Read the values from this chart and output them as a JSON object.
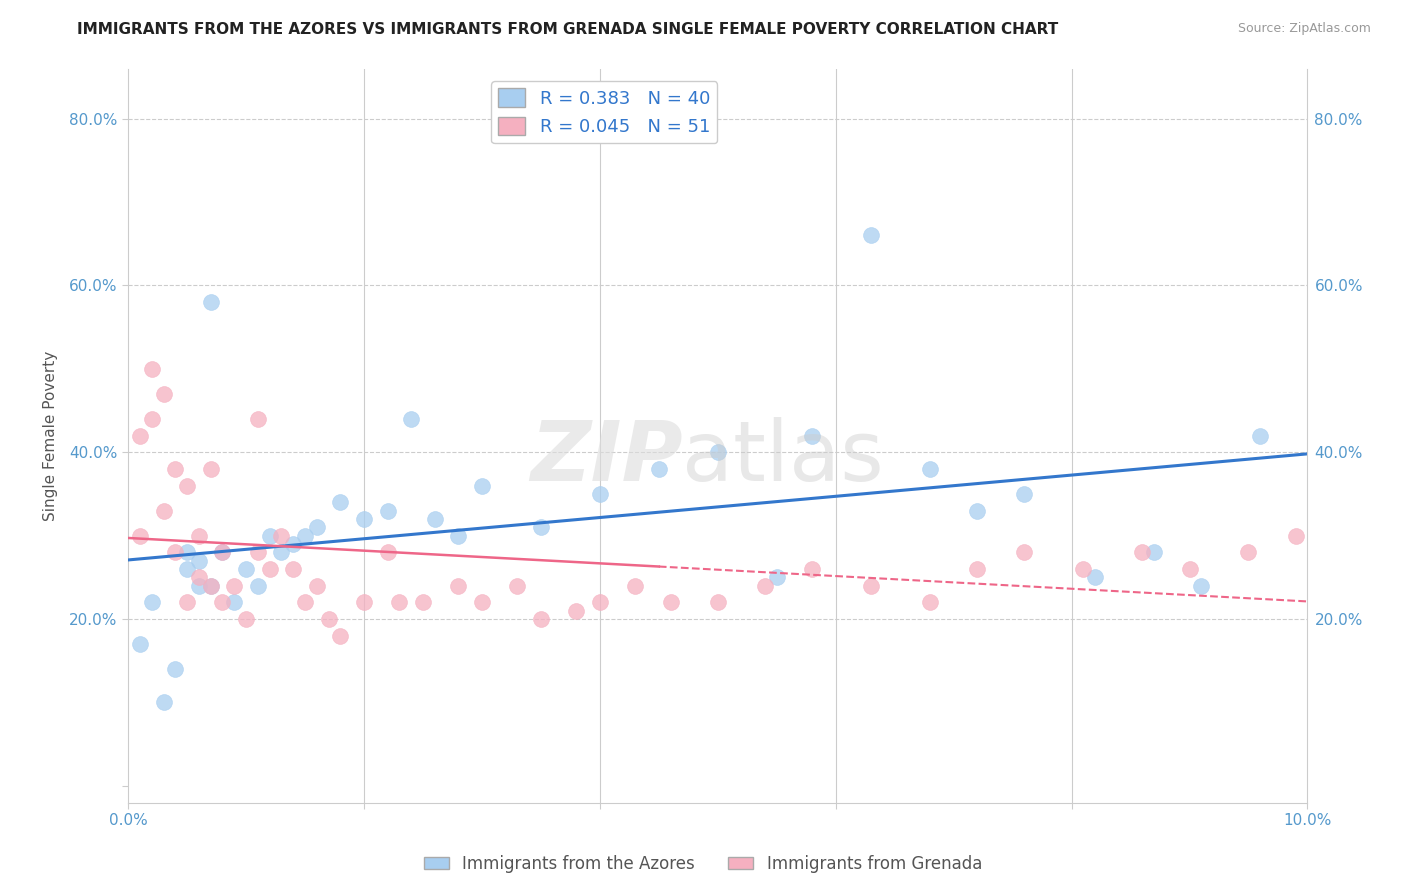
{
  "title": "IMMIGRANTS FROM THE AZORES VS IMMIGRANTS FROM GRENADA SINGLE FEMALE POVERTY CORRELATION CHART",
  "source": "Source: ZipAtlas.com",
  "ylabel": "Single Female Poverty",
  "xlim": [
    0.0,
    0.1
  ],
  "ylim": [
    -0.02,
    0.86
  ],
  "R_azores": 0.383,
  "N_azores": 40,
  "R_grenada": 0.045,
  "N_grenada": 51,
  "color_azores": "#a8cef0",
  "color_grenada": "#f5b0c0",
  "line_color_azores": "#3377cc",
  "line_color_grenada": "#ee6688",
  "legend_azores": "Immigrants from the Azores",
  "legend_grenada": "Immigrants from Grenada",
  "azores_x": [
    0.001,
    0.002,
    0.003,
    0.004,
    0.005,
    0.005,
    0.006,
    0.006,
    0.007,
    0.007,
    0.008,
    0.009,
    0.01,
    0.011,
    0.012,
    0.013,
    0.014,
    0.015,
    0.016,
    0.018,
    0.02,
    0.022,
    0.024,
    0.026,
    0.028,
    0.03,
    0.035,
    0.04,
    0.045,
    0.05,
    0.055,
    0.058,
    0.063,
    0.068,
    0.072,
    0.076,
    0.082,
    0.087,
    0.091,
    0.096
  ],
  "azores_y": [
    0.17,
    0.22,
    0.1,
    0.14,
    0.26,
    0.28,
    0.24,
    0.27,
    0.24,
    0.58,
    0.28,
    0.22,
    0.26,
    0.24,
    0.3,
    0.28,
    0.29,
    0.3,
    0.31,
    0.34,
    0.32,
    0.33,
    0.44,
    0.32,
    0.3,
    0.36,
    0.31,
    0.35,
    0.38,
    0.4,
    0.25,
    0.42,
    0.66,
    0.38,
    0.33,
    0.35,
    0.25,
    0.28,
    0.24,
    0.42
  ],
  "grenada_x": [
    0.001,
    0.001,
    0.002,
    0.002,
    0.003,
    0.003,
    0.004,
    0.004,
    0.005,
    0.005,
    0.006,
    0.006,
    0.007,
    0.007,
    0.008,
    0.008,
    0.009,
    0.01,
    0.011,
    0.011,
    0.012,
    0.013,
    0.014,
    0.015,
    0.016,
    0.017,
    0.018,
    0.02,
    0.022,
    0.023,
    0.025,
    0.028,
    0.03,
    0.033,
    0.035,
    0.038,
    0.04,
    0.043,
    0.046,
    0.05,
    0.054,
    0.058,
    0.063,
    0.068,
    0.072,
    0.076,
    0.081,
    0.086,
    0.09,
    0.095,
    0.099
  ],
  "grenada_y": [
    0.3,
    0.42,
    0.44,
    0.5,
    0.47,
    0.33,
    0.38,
    0.28,
    0.36,
    0.22,
    0.25,
    0.3,
    0.24,
    0.38,
    0.22,
    0.28,
    0.24,
    0.2,
    0.44,
    0.28,
    0.26,
    0.3,
    0.26,
    0.22,
    0.24,
    0.2,
    0.18,
    0.22,
    0.28,
    0.22,
    0.22,
    0.24,
    0.22,
    0.24,
    0.2,
    0.21,
    0.22,
    0.24,
    0.22,
    0.22,
    0.24,
    0.26,
    0.24,
    0.22,
    0.26,
    0.28,
    0.26,
    0.28,
    0.26,
    0.28,
    0.3
  ],
  "yticks": [
    0.0,
    0.2,
    0.4,
    0.6,
    0.8
  ],
  "xticks": [
    0.0,
    0.02,
    0.04,
    0.06,
    0.08,
    0.1
  ]
}
